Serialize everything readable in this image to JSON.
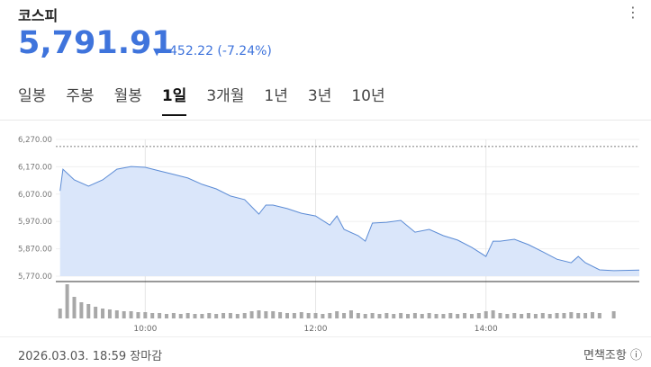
{
  "header": {
    "title": "코스피",
    "price": "5,791.91",
    "change": "452.22 (-7.24%)"
  },
  "tabs": [
    "일봉",
    "주봉",
    "월봉",
    "1일",
    "3개월",
    "1년",
    "3년",
    "10년"
  ],
  "active_tab": 3,
  "chart_data": {
    "type": "area",
    "color": "#5b8bd5",
    "fill": "#dae6fa",
    "x": [
      "09:00",
      "09:02",
      "09:10",
      "09:20",
      "09:30",
      "09:40",
      "09:50",
      "10:00",
      "10:10",
      "10:20",
      "10:30",
      "10:40",
      "10:50",
      "11:00",
      "11:10",
      "11:20",
      "11:25",
      "11:30",
      "11:40",
      "11:50",
      "12:00",
      "12:10",
      "12:15",
      "12:20",
      "12:30",
      "12:35",
      "12:40",
      "12:50",
      "13:00",
      "13:10",
      "13:20",
      "13:30",
      "13:40",
      "13:50",
      "14:00",
      "14:05",
      "14:10",
      "14:20",
      "14:30",
      "14:40",
      "14:50",
      "15:00",
      "15:05",
      "15:10",
      "15:20",
      "15:30",
      "15:48"
    ],
    "values": [
      6082,
      6161,
      6122,
      6099,
      6122,
      6161,
      6171,
      6168,
      6155,
      6142,
      6129,
      6106,
      6089,
      6063,
      6050,
      5997,
      6030,
      6030,
      6017,
      6000,
      5990,
      5957,
      5990,
      5941,
      5918,
      5898,
      5964,
      5967,
      5974,
      5931,
      5941,
      5918,
      5902,
      5875,
      5842,
      5898,
      5898,
      5905,
      5885,
      5859,
      5832,
      5819,
      5842,
      5819,
      5793,
      5790,
      5791.91
    ],
    "reference_line": 6244.13,
    "xlim": [
      "08:57",
      "15:48"
    ],
    "xticks": [
      "10:00",
      "12:00",
      "14:00"
    ],
    "ylim": [
      5770,
      6270
    ],
    "yticks": [
      {
        "value": 6270,
        "label": "6,270.00"
      },
      {
        "value": 6170,
        "label": "6,170.00"
      },
      {
        "value": 6070,
        "label": "6,070.00"
      },
      {
        "value": 5970,
        "label": "5,970.00"
      },
      {
        "value": 5870,
        "label": "5,870.00"
      },
      {
        "value": 5770,
        "label": "5,770.00"
      }
    ],
    "volume": {
      "color": "#a8a8a8",
      "x": [
        "09:00",
        "09:05",
        "09:10",
        "09:15",
        "09:20",
        "09:25",
        "09:30",
        "09:35",
        "09:40",
        "09:45",
        "09:50",
        "09:55",
        "10:00",
        "10:05",
        "10:10",
        "10:15",
        "10:20",
        "10:25",
        "10:30",
        "10:35",
        "10:40",
        "10:45",
        "10:50",
        "10:55",
        "11:00",
        "11:05",
        "11:10",
        "11:15",
        "11:20",
        "11:25",
        "11:30",
        "11:35",
        "11:40",
        "11:45",
        "11:50",
        "11:55",
        "12:00",
        "12:05",
        "12:10",
        "12:15",
        "12:20",
        "12:25",
        "12:30",
        "12:35",
        "12:40",
        "12:45",
        "12:50",
        "12:55",
        "13:00",
        "13:05",
        "13:10",
        "13:15",
        "13:20",
        "13:25",
        "13:30",
        "13:35",
        "13:40",
        "13:45",
        "13:50",
        "13:55",
        "14:00",
        "14:05",
        "14:10",
        "14:15",
        "14:20",
        "14:25",
        "14:30",
        "14:35",
        "14:40",
        "14:45",
        "14:50",
        "14:55",
        "15:00",
        "15:05",
        "15:10",
        "15:15",
        "15:20",
        "15:30"
      ],
      "values": [
        11,
        38,
        24,
        18,
        16,
        13,
        11,
        10,
        9,
        8,
        8,
        7,
        7,
        6,
        6,
        5,
        6,
        5,
        6,
        5,
        5,
        6,
        5,
        6,
        6,
        5,
        6,
        8,
        9,
        8,
        8,
        7,
        6,
        6,
        7,
        6,
        6,
        5,
        6,
        8,
        6,
        9,
        6,
        5,
        6,
        5,
        6,
        5,
        6,
        5,
        6,
        5,
        6,
        5,
        5,
        6,
        5,
        6,
        5,
        6,
        8,
        9,
        6,
        5,
        6,
        5,
        6,
        5,
        6,
        5,
        6,
        6,
        7,
        6,
        6,
        7,
        6,
        8
      ]
    }
  },
  "footer": {
    "timestamp": "2026.03.03. 18:59 장마감",
    "disclaimer": "면책조항"
  }
}
